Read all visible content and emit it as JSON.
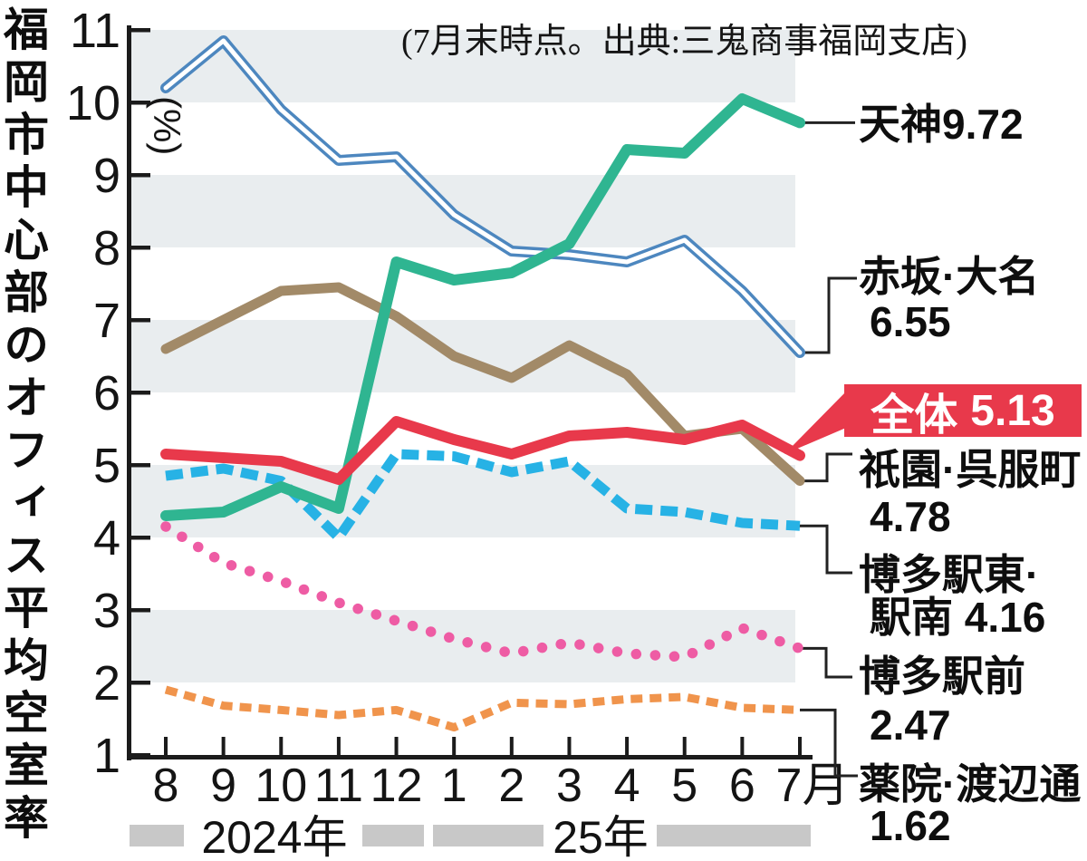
{
  "chart_data": {
    "type": "line",
    "title": "福岡市中心部のオフィス平均空室率",
    "source_note": "(7月末時点。出典:三鬼商事福岡支店)",
    "unit_label": "(%)",
    "y_axis": {
      "min": 1,
      "max": 11,
      "ticks": [
        11,
        10,
        9,
        8,
        7,
        6,
        5,
        4,
        3,
        2,
        1
      ]
    },
    "x_axis": {
      "month_labels": [
        "8",
        "9",
        "10",
        "11",
        "12",
        "1",
        "2",
        "3",
        "4",
        "5",
        "6",
        "7月"
      ],
      "year_groups": [
        {
          "label": "2024年"
        },
        {
          "label": "25年"
        }
      ]
    },
    "shaded_bands": [
      [
        10,
        11
      ],
      [
        8,
        9
      ],
      [
        6,
        7
      ],
      [
        4,
        5
      ],
      [
        2,
        3
      ]
    ],
    "band_color": "#e9edef",
    "axis_color": "#1b1b1b",
    "year_bar_color": "#c8c8c8",
    "series": [
      {
        "key": "tenjin",
        "name": "天神",
        "color": "#2fb591",
        "style": "solid",
        "final_value": 9.72,
        "values": [
          4.3,
          4.35,
          4.7,
          4.4,
          7.8,
          7.55,
          7.65,
          8.05,
          9.35,
          9.3,
          10.05,
          9.72
        ]
      },
      {
        "key": "akasaka",
        "name": "赤坂·大名",
        "color": "#4d87bf",
        "style": "double-outline",
        "final_value": 6.55,
        "values": [
          10.2,
          10.85,
          9.9,
          9.2,
          9.25,
          8.45,
          7.95,
          7.9,
          7.8,
          8.1,
          7.4,
          6.55
        ]
      },
      {
        "key": "zentai",
        "name": "全体",
        "color": "#e8394b",
        "style": "solid",
        "final_value": 5.13,
        "values": [
          5.15,
          5.1,
          5.05,
          4.8,
          5.6,
          5.35,
          5.15,
          5.4,
          5.45,
          5.35,
          5.55,
          5.13
        ]
      },
      {
        "key": "gion",
        "name": "祇園·呉服町",
        "color": "#a28a68",
        "style": "solid",
        "final_value": 4.78,
        "values": [
          6.6,
          7.0,
          7.4,
          7.45,
          7.05,
          6.5,
          6.2,
          6.65,
          6.25,
          5.4,
          5.5,
          4.78
        ]
      },
      {
        "key": "hakata_higashi",
        "name": "博多駅東·駅南",
        "color": "#27b2e5",
        "style": "dashed",
        "final_value": 4.16,
        "values": [
          4.85,
          4.95,
          4.78,
          4.0,
          5.15,
          5.12,
          4.9,
          5.05,
          4.4,
          4.35,
          4.2,
          4.16
        ]
      },
      {
        "key": "hakata_ekimae",
        "name": "博多駅前",
        "color": "#ee5ca4",
        "style": "dotted",
        "final_value": 2.47,
        "values": [
          4.15,
          3.65,
          3.4,
          3.1,
          2.85,
          2.6,
          2.4,
          2.55,
          2.4,
          2.35,
          2.75,
          2.47
        ]
      },
      {
        "key": "yakuin",
        "name": "薬院·渡辺通",
        "color": "#f0944c",
        "style": "dashed",
        "final_value": 1.62,
        "values": [
          1.9,
          1.68,
          1.62,
          1.55,
          1.62,
          1.38,
          1.72,
          1.7,
          1.77,
          1.8,
          1.65,
          1.62
        ]
      }
    ],
    "callout": {
      "label": "全体",
      "value": "5.13",
      "color": "#e8394b",
      "text_color": "#ffffff"
    },
    "legend_labels": [
      {
        "key": "tenjin",
        "line1": "天神9.72",
        "line2": ""
      },
      {
        "key": "akasaka",
        "line1": "赤坂·大名",
        "line2": "6.55"
      },
      {
        "key": "gion",
        "line1": "祇園·呉服町",
        "line2": "4.78"
      },
      {
        "key": "hakata_higashi",
        "line1": "博多駅東·",
        "line2": "駅南 4.16"
      },
      {
        "key": "hakata_ekimae",
        "line1": "博多駅前",
        "line2": "2.47"
      },
      {
        "key": "yakuin",
        "line1": "薬院·渡辺通",
        "line2": "1.62"
      }
    ]
  }
}
